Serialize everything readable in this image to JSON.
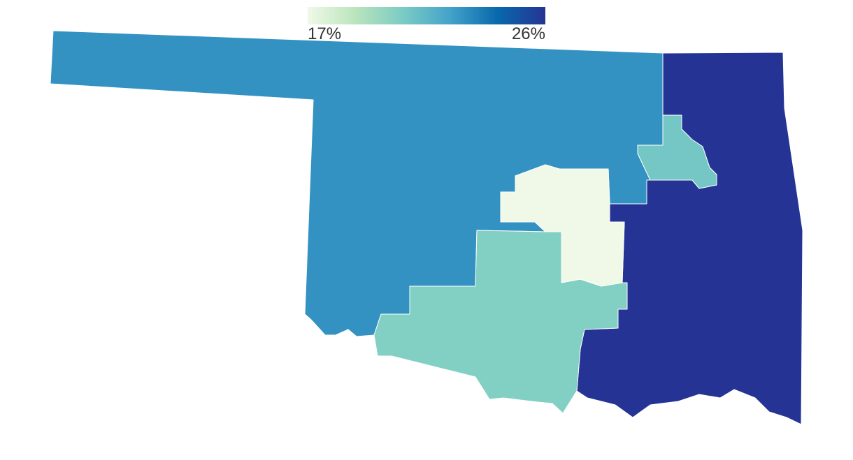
{
  "map": {
    "type": "choropleth",
    "colorscale": [
      "#f0f9e8",
      "#bae4bc",
      "#7bccc4",
      "#43a2ca",
      "#0868ac",
      "#253494"
    ],
    "legend": {
      "range": [
        17,
        26
      ],
      "ticks": [
        {
          "value": 17,
          "label": "17%"
        },
        {
          "value": 26,
          "label": "26%"
        }
      ]
    },
    "regions": [
      {
        "value": 22.9
      },
      {
        "value": 26
      },
      {
        "value": 20.8
      },
      {
        "value": 20.4
      },
      {
        "value": 17
      }
    ]
  }
}
